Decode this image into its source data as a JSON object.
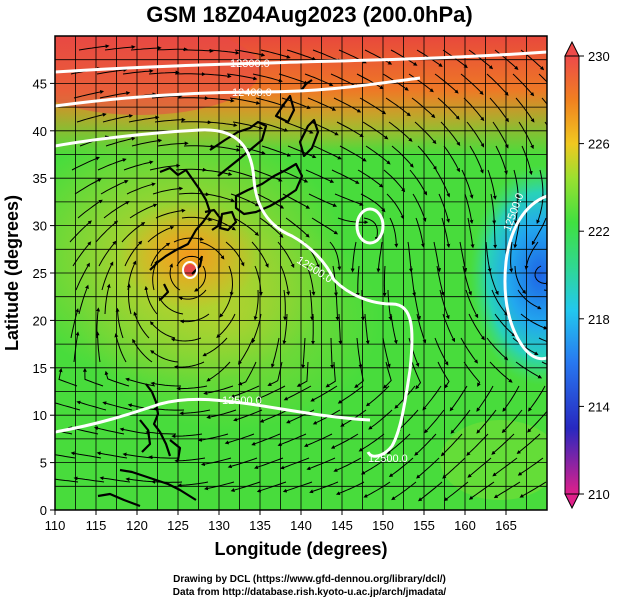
{
  "title": "GSM 18Z04Aug2023 (200.0hPa)",
  "xaxis": {
    "label": "Longitude (degrees)",
    "range": [
      110,
      170
    ],
    "ticks": [
      110,
      115,
      120,
      125,
      130,
      135,
      140,
      145,
      150,
      155,
      160,
      165
    ]
  },
  "yaxis": {
    "label": "Latitude (degrees)",
    "range": [
      0,
      50
    ],
    "ticks": [
      0,
      5,
      10,
      15,
      20,
      25,
      30,
      35,
      40,
      45
    ]
  },
  "colorbar": {
    "min": 210,
    "max": 230,
    "tick_labels": [
      "230",
      "226",
      "222",
      "218",
      "214",
      "210"
    ],
    "colors": [
      "#e0208a",
      "#3030c8",
      "#2878f0",
      "#20c8e8",
      "#30d890",
      "#40e040",
      "#9ae030",
      "#f0c020",
      "#f08020",
      "#f04848"
    ]
  },
  "contour_labels": [
    "12300.0",
    "12400.0",
    "12500.0",
    "12500.0",
    "12500.0",
    "12500.0"
  ],
  "credits": {
    "line1": "Drawing by DCL (https://www.gfd-dennou.org/library/dcl/)",
    "line2": "Data from http://database.rish.kyoto-u.ac.jp/arch/jmadata/"
  }
}
